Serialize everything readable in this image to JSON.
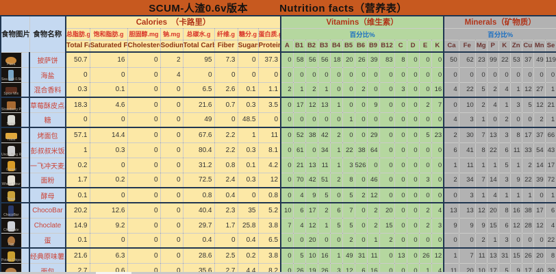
{
  "title": {
    "left": "SCUM-人渣0.6v版本",
    "right": "Nutrition facts（营养表）"
  },
  "left_headers": {
    "image": "食物图片",
    "name": "食物名称"
  },
  "sections": {
    "calories": {
      "title": "Calories　（卡路里）",
      "cols": [
        {
          "cn": "总脂肪.g",
          "en": "Total Fat"
        },
        {
          "cn": "饱和脂肪.g",
          "en": "Saturated Fat"
        },
        {
          "cn": "胆固醇.mg",
          "en": "Cholesterol"
        },
        {
          "cn": "钠.mg",
          "en": "Sodium"
        },
        {
          "cn": "总碳水.g",
          "en": "Total Carbs"
        },
        {
          "cn": "纤维.g",
          "en": "Fiber"
        },
        {
          "cn": "糖分.g",
          "en": "Sugars"
        },
        {
          "cn": "蛋白质.g",
          "en": "Protein"
        }
      ]
    },
    "vitamins": {
      "title": "Vitamins（维生素）",
      "percent": "百分比%",
      "cols": [
        "A",
        "B1",
        "B2",
        "B3",
        "B4",
        "B5",
        "B6",
        "B9",
        "B12",
        "C",
        "D",
        "E",
        "K"
      ]
    },
    "minerals": {
      "title": "Minerals（矿物质）",
      "percent": "百分比%",
      "cols": [
        "Ca",
        "Fe",
        "Mg",
        "P",
        "K",
        "Zn",
        "Cu",
        "Mn",
        "Se"
      ]
    }
  },
  "colors": {
    "title_bar": "#C7591F",
    "calories_bg": "#FCE8A6",
    "vitamins_bg": "#B5D79F",
    "minerals_bg": "#B2B2B2",
    "name_col_bg": "#C5D9F1",
    "name_text": "#CC4437",
    "percent_label": "#1B6FC2",
    "section_title_text": "#B03418",
    "thick_border": "#1F3550"
  },
  "icons": {
    "pizza": {
      "color": "#C8883A",
      "shape": "ellipse"
    },
    "salt": {
      "color": "#7AA7C7",
      "shape": "tall"
    },
    "spice": {
      "color": "#5A2E1E",
      "shape": "wide"
    },
    "pastry": {
      "color": "#A86A32",
      "shape": "box"
    },
    "sugar": {
      "color": "#D8D8D2",
      "shape": "bag"
    },
    "toast": {
      "color": "#E0A83C",
      "shape": "wide"
    },
    "rice": {
      "color": "#CFCFCF",
      "shape": "bag"
    },
    "cereal": {
      "color": "#D89C28",
      "shape": "bag"
    },
    "flour": {
      "color": "#E3DED2",
      "shape": "bag"
    },
    "yeast": {
      "color": "#CAA23A",
      "shape": "bag"
    },
    "chocobar": {
      "color": "#2A3A6A",
      "shape": "tall"
    },
    "chocolate": {
      "color": "#CFD2D8",
      "shape": "bag"
    },
    "egg": {
      "color": "#B07840",
      "shape": "egg"
    },
    "chips": {
      "color": "#CAA030",
      "shape": "bag"
    },
    "bread": {
      "color": "#B58048",
      "shape": "ellipse"
    }
  },
  "rows": [
    {
      "name": "披萨饼",
      "caption": "Pizza",
      "icon": "pizza",
      "cal": [
        50.7,
        16,
        0,
        2,
        95,
        7.3,
        0,
        37.3
      ],
      "vit": [
        0,
        58,
        56,
        56,
        18,
        20,
        26,
        39,
        83,
        8,
        0,
        0,
        0
      ],
      "min": [
        50,
        62,
        23,
        99,
        22,
        53,
        37,
        49,
        119
      ]
    },
    {
      "name": "海盐",
      "caption": "Sea Salt 0.5kg",
      "icon": "salt",
      "cal": [
        0,
        0,
        0,
        4,
        0,
        0,
        0,
        0
      ],
      "vit": [
        0,
        0,
        0,
        0,
        0,
        0,
        0,
        0,
        0,
        0,
        0,
        0,
        0
      ],
      "min": [
        0,
        0,
        0,
        0,
        0,
        0,
        0,
        0,
        0
      ]
    },
    {
      "name": "混合香料",
      "caption": "Spice Mix",
      "icon": "spice",
      "cal": [
        0.3,
        0.1,
        0,
        0,
        6.5,
        2.6,
        0.1,
        1.1
      ],
      "vit": [
        2,
        1,
        2,
        1,
        0,
        0,
        2,
        0,
        0,
        3,
        0,
        0,
        16
      ],
      "min": [
        4,
        22,
        5,
        2,
        4,
        1,
        12,
        27,
        1
      ]
    },
    {
      "name": "草莓酥皮点心",
      "caption": "Strawberry Pie",
      "icon": "pastry",
      "cal": [
        18.3,
        4.6,
        0,
        0,
        21.6,
        0.7,
        0.3,
        3.5
      ],
      "vit": [
        0,
        17,
        12,
        13,
        1,
        0,
        0,
        9,
        0,
        0,
        0,
        2,
        7
      ],
      "min": [
        0,
        10,
        2,
        4,
        1,
        3,
        5,
        12,
        21
      ]
    },
    {
      "name": "糖",
      "caption": "Sugar",
      "icon": "sugar",
      "cal": [
        0,
        0,
        0,
        0,
        49,
        0,
        48.5,
        0
      ],
      "vit": [
        0,
        0,
        0,
        0,
        0,
        1,
        0,
        0,
        0,
        0,
        0,
        0,
        0
      ],
      "min": [
        4,
        3,
        1,
        0,
        2,
        0,
        0,
        2,
        1
      ]
    },
    {
      "name": "烤面包",
      "caption": "Toast",
      "icon": "toast",
      "cal": [
        57.1,
        14.4,
        0,
        0,
        67.6,
        2.2,
        1,
        11
      ],
      "vit": [
        0,
        52,
        38,
        42,
        2,
        0,
        0,
        29,
        0,
        0,
        0,
        5,
        23
      ],
      "min": [
        2,
        30,
        7,
        13,
        3,
        8,
        17,
        37,
        66
      ]
    },
    {
      "name": "彭叔叔米饭",
      "caption": "Uncle Bing Rice",
      "icon": "rice",
      "cal": [
        1,
        0.3,
        0,
        0,
        80.4,
        2.2,
        0.3,
        8.1
      ],
      "vit": [
        0,
        61,
        0,
        34,
        1,
        22,
        38,
        64,
        0,
        0,
        0,
        0,
        0
      ],
      "min": [
        6,
        41,
        8,
        22,
        6,
        11,
        33,
        54,
        43
      ]
    },
    {
      "name": "一飞冲天麦片",
      "caption": "Cereal",
      "icon": "cereal",
      "cal": [
        0.2,
        0,
        0,
        0,
        31.2,
        0.8,
        0.1,
        4.2
      ],
      "vit": [
        0,
        21,
        13,
        11,
        1,
        3,
        526,
        0,
        0,
        0,
        0,
        0,
        0
      ],
      "min": [
        1,
        11,
        1,
        1,
        5,
        1,
        2,
        14,
        17
      ]
    },
    {
      "name": "面粉",
      "caption": "Wheat Flour",
      "icon": "flour",
      "cal": [
        1.7,
        0.2,
        0,
        0,
        72.5,
        2.4,
        0.3,
        12
      ],
      "vit": [
        0,
        70,
        42,
        51,
        2,
        8,
        0,
        46,
        0,
        0,
        0,
        3,
        0
      ],
      "min": [
        2,
        34,
        7,
        14,
        3,
        9,
        22,
        39,
        72
      ]
    },
    {
      "name": "酵母",
      "caption": "Yeast",
      "icon": "yeast",
      "cal": [
        0.1,
        0,
        0,
        0,
        0.8,
        0.4,
        0,
        0.8
      ],
      "vit": [
        0,
        4,
        9,
        5,
        0,
        5,
        2,
        12,
        0,
        0,
        0,
        0,
        0
      ],
      "min": [
        0,
        3,
        1,
        4,
        1,
        1,
        1,
        0,
        1
      ]
    },
    {
      "name": "ChocoBar",
      "caption": "ChocoBar",
      "icon": "chocobar",
      "cal": [
        20.2,
        12.6,
        0,
        0,
        40.4,
        2.3,
        35,
        5.2
      ],
      "vit": [
        10,
        6,
        17,
        2,
        6,
        7,
        0,
        2,
        20,
        0,
        0,
        2,
        4
      ],
      "min": [
        13,
        13,
        12,
        20,
        8,
        16,
        38,
        17,
        6
      ]
    },
    {
      "name": "Choclate",
      "caption": "Chocolate",
      "icon": "chocolate",
      "cal": [
        14.9,
        9.2,
        0,
        0,
        29.7,
        1.7,
        25.8,
        3.8
      ],
      "vit": [
        7,
        4,
        12,
        1,
        5,
        5,
        0,
        2,
        15,
        0,
        0,
        2,
        3
      ],
      "min": [
        9,
        9,
        9,
        15,
        6,
        12,
        28,
        12,
        4
      ]
    },
    {
      "name": "蛋",
      "caption": "Egg",
      "icon": "egg",
      "cal": [
        0.1,
        0,
        0,
        0,
        0.4,
        0,
        0.4,
        6.5
      ],
      "vit": [
        0,
        0,
        20,
        0,
        0,
        2,
        0,
        1,
        2,
        0,
        0,
        0,
        0
      ],
      "min": [
        0,
        0,
        2,
        1,
        3,
        0,
        0,
        0,
        22
      ]
    },
    {
      "name": "经典原味薯片",
      "caption": "Potato Chips",
      "icon": "chips",
      "cal": [
        21.6,
        6.3,
        0,
        0,
        28.6,
        2.5,
        0.2,
        3.8
      ],
      "vit": [
        0,
        5,
        10,
        16,
        1,
        49,
        31,
        11,
        0,
        13,
        0,
        26,
        12
      ],
      "min": [
        1,
        7,
        11,
        13,
        31,
        15,
        26,
        20,
        8
      ]
    },
    {
      "name": "面包",
      "caption": "Bread",
      "icon": "bread",
      "cal": [
        2.7,
        0.6,
        0,
        0,
        35.6,
        2.7,
        4.4,
        8.2
      ],
      "vit": [
        0,
        26,
        19,
        26,
        3,
        12,
        6,
        16,
        0,
        0,
        0,
        1,
        4
      ],
      "min": [
        11,
        20,
        10,
        17,
        5,
        9,
        17,
        40,
        39
      ]
    }
  ]
}
